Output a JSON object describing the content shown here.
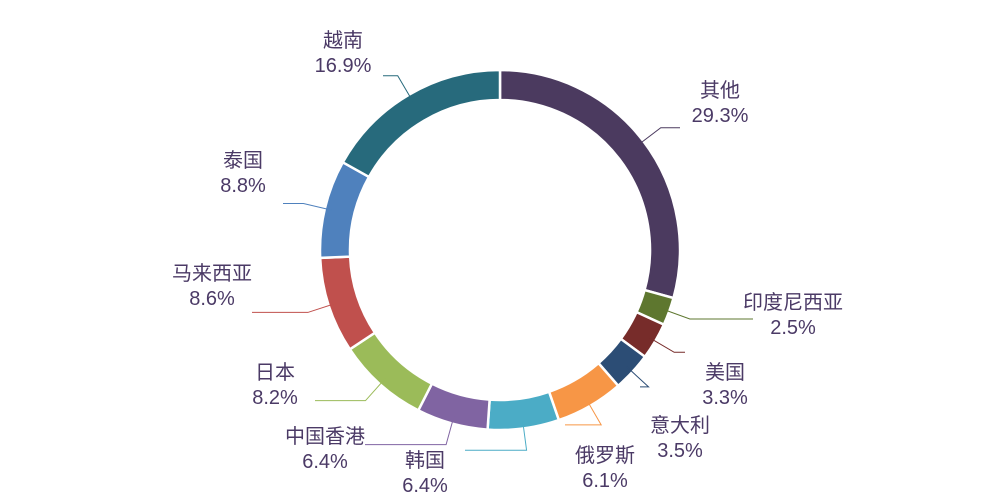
{
  "chart_data": {
    "type": "pie",
    "variant": "donut",
    "unit": "%",
    "slices": [
      {
        "label": "其他",
        "value": 29.3,
        "display": "29.3%",
        "color": "#4B3A5F"
      },
      {
        "label": "印度尼西亚",
        "value": 2.5,
        "display": "2.5%",
        "color": "#5E772F"
      },
      {
        "label": "美国",
        "value": 3.3,
        "display": "3.3%",
        "color": "#772C2A"
      },
      {
        "label": "意大利",
        "value": 3.5,
        "display": "3.5%",
        "color": "#2C4D75"
      },
      {
        "label": "俄罗斯",
        "value": 6.1,
        "display": "6.1%",
        "color": "#F79646"
      },
      {
        "label": "韩国",
        "value": 6.4,
        "display": "6.4%",
        "color": "#4BACC6"
      },
      {
        "label": "中国香港",
        "value": 6.4,
        "display": "6.4%",
        "color": "#8064A2"
      },
      {
        "label": "日本",
        "value": 8.2,
        "display": "8.2%",
        "color": "#9BBB59"
      },
      {
        "label": "马来西亚",
        "value": 8.6,
        "display": "8.6%",
        "color": "#C0504D"
      },
      {
        "label": "泰国",
        "value": 8.8,
        "display": "8.8%",
        "color": "#4F81BD"
      },
      {
        "label": "越南",
        "value": 16.9,
        "display": "16.9%",
        "color": "#276A7C"
      }
    ],
    "start_angle": "top",
    "direction": "clockwise",
    "legend": "none"
  }
}
